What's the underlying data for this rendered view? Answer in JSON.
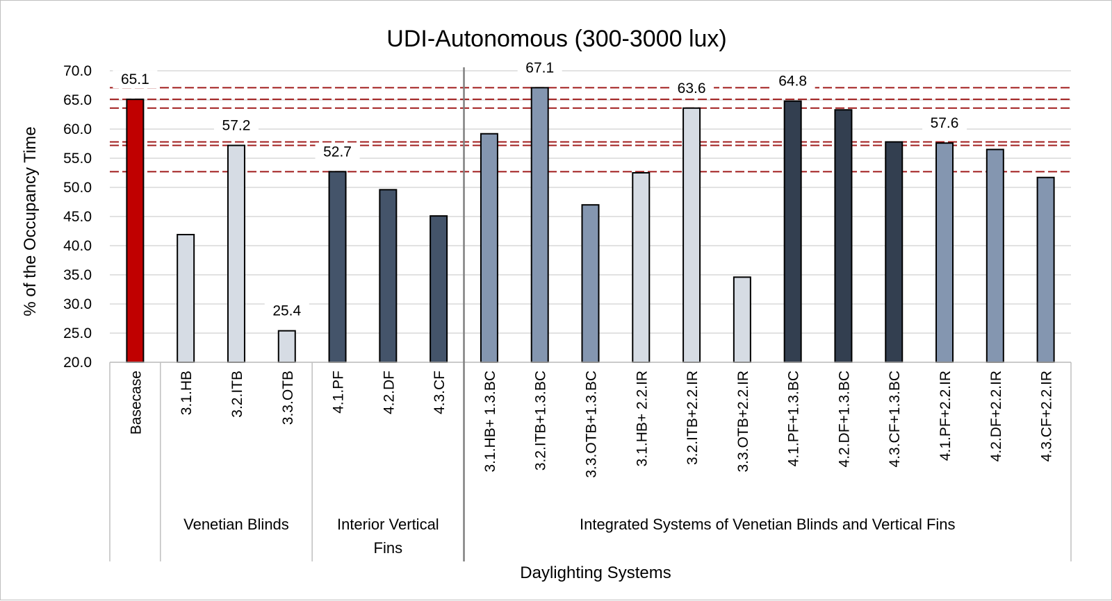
{
  "chart_data": {
    "type": "bar",
    "title": "UDI-Autonomous (300-3000 lux)",
    "xlabel": "Daylighting Systems",
    "ylabel": "% of the Occupancy Time",
    "ylim": [
      20,
      70
    ],
    "yticks": [
      "20.0",
      "25.0",
      "30.0",
      "35.0",
      "40.0",
      "45.0",
      "50.0",
      "55.0",
      "60.0",
      "65.0",
      "70.0"
    ],
    "grid": "horizontal",
    "categories": [
      "Basecase",
      "3.1.HB",
      "3.2.ITB",
      "3.3.OTB",
      "4.1.PF",
      "4.2.DF",
      "4.3.CF",
      "3.1.HB+ 1.3.BC",
      "3.2.ITB+1.3.BC",
      "3.3.OTB+1.3.BC",
      "3.1.HB+ 2.2.IR",
      "3.2.ITB+2.2.IR",
      "3.3.OTB+2.2.IR",
      "4.1.PF+1.3.BC",
      "4.2.DF+1.3.BC",
      "4.3.CF+1.3.BC",
      "4.1.PF+2.2.IR",
      "4.2.DF+2.2.IR",
      "4.3.CF+2.2.IR"
    ],
    "values": [
      65.1,
      41.9,
      57.2,
      25.4,
      52.7,
      49.6,
      45.1,
      59.2,
      67.1,
      47.0,
      52.5,
      63.6,
      34.6,
      64.8,
      63.3,
      57.8,
      57.6,
      56.5,
      51.7
    ],
    "bar_colors": [
      "#c00000",
      "#d6dce4",
      "#d6dce4",
      "#d6dce4",
      "#44546a",
      "#44546a",
      "#44546a",
      "#8496b0",
      "#8496b0",
      "#8496b0",
      "#d6dce4",
      "#d6dce4",
      "#d6dce4",
      "#333f50",
      "#333f50",
      "#333f50",
      "#8496b0",
      "#8496b0",
      "#8496b0"
    ],
    "groups": [
      {
        "label": "",
        "start": 0,
        "end": 0
      },
      {
        "label": "Venetian Blinds",
        "start": 1,
        "end": 3
      },
      {
        "label": "Interior Vertical Fins",
        "start": 4,
        "end": 6
      },
      {
        "label": "Integrated Systems of Venetian Blinds and Vertical Fins",
        "start": 7,
        "end": 18
      }
    ],
    "reference_lines": [
      67.1,
      65.1,
      63.6,
      57.8,
      57.2,
      52.7
    ],
    "reference_line_color": "#a01c1c",
    "data_labels": [
      {
        "index": 0,
        "text": "65.1",
        "color": "#000000"
      },
      {
        "index": 2,
        "text": "57.2",
        "color": "#000000"
      },
      {
        "index": 3,
        "text": "25.4",
        "color": "#c00000"
      },
      {
        "index": 4,
        "text": "52.7",
        "color": "#000000"
      },
      {
        "index": 8,
        "text": "67.1",
        "color": "#000000"
      },
      {
        "index": 11,
        "text": "63.6",
        "color": "#000000"
      },
      {
        "index": 13,
        "text": "64.8",
        "color": "#000000"
      },
      {
        "index": 16,
        "text": "57.6",
        "color": "#000000"
      }
    ]
  }
}
